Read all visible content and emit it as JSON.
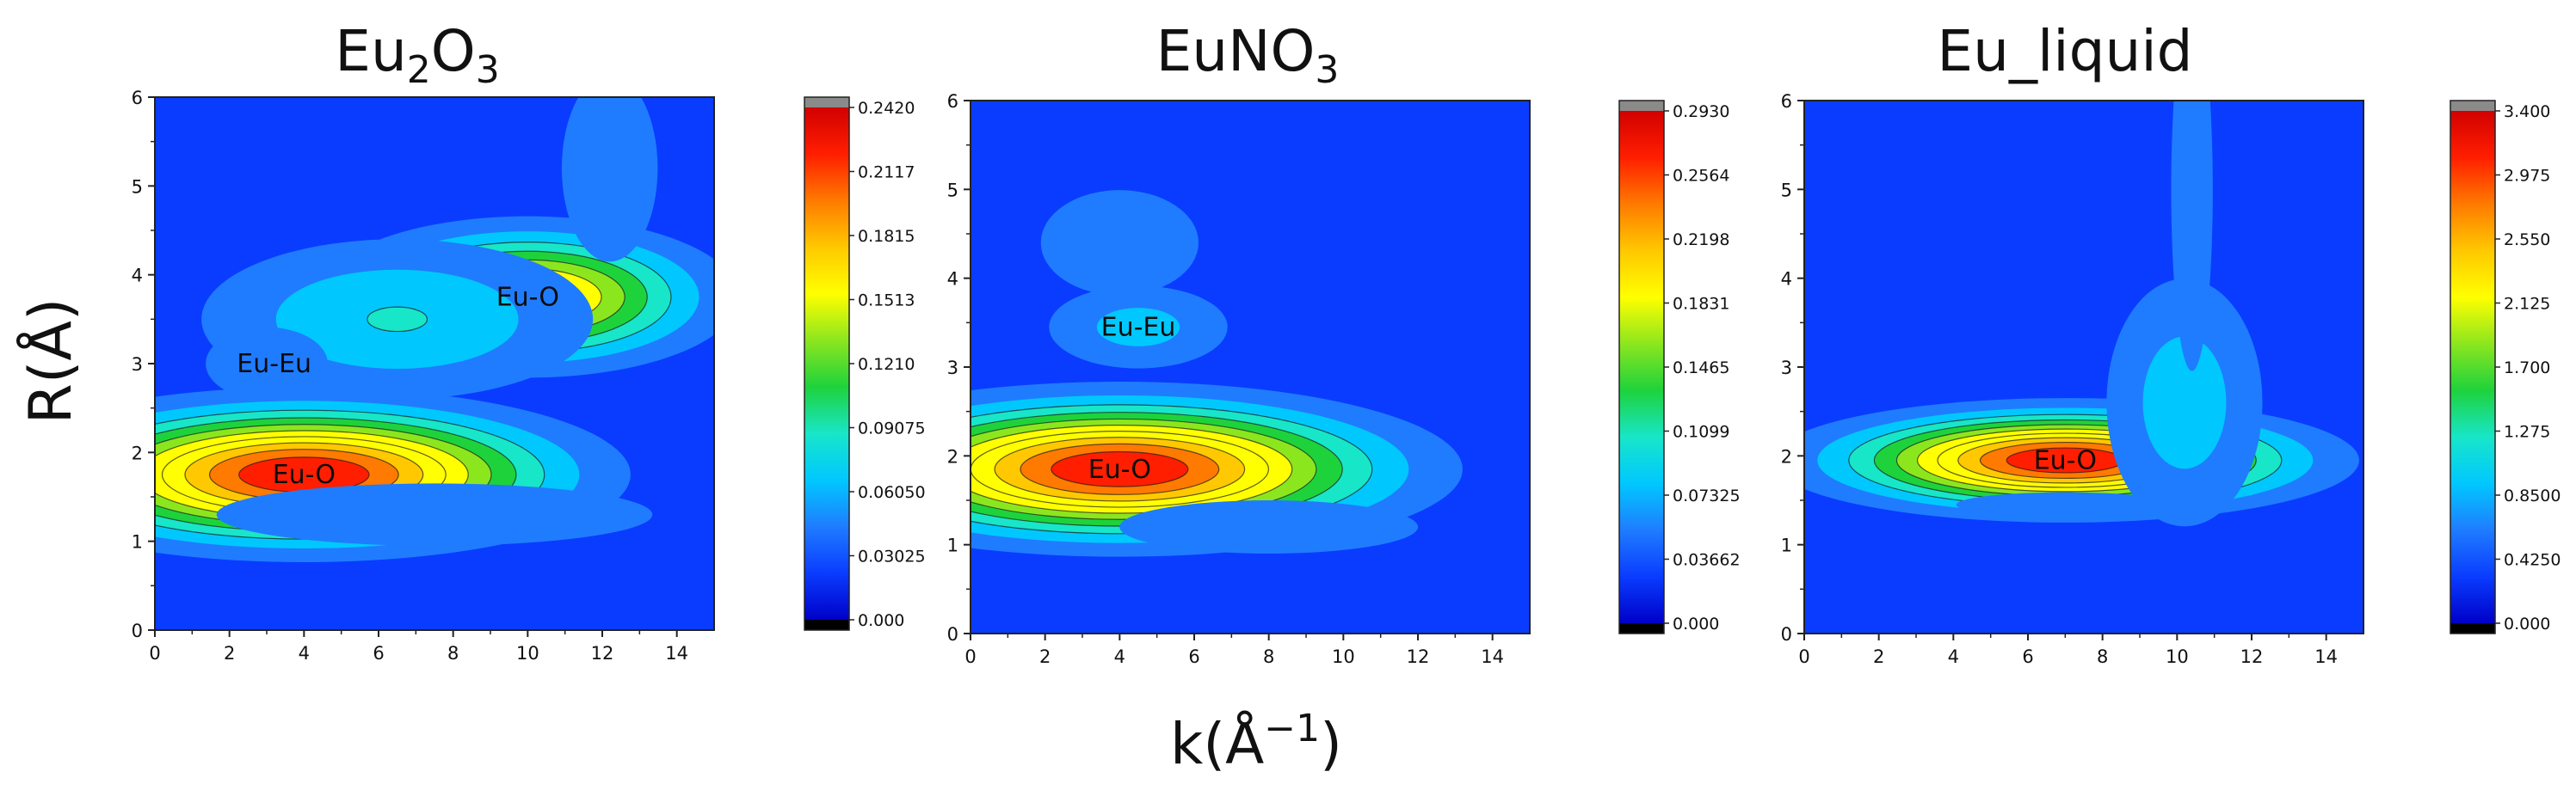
{
  "figure": {
    "y_axis_title": "R(Å)",
    "x_axis_title_main": "k(Å",
    "x_axis_title_sup": "−1",
    "x_axis_title_end": ")"
  },
  "colormap": [
    "#000000",
    "#0000c8",
    "#0a3cff",
    "#1f7cff",
    "#00c8ff",
    "#18e6c8",
    "#1ed23c",
    "#8ce61e",
    "#ffff00",
    "#ffc800",
    "#ff7a00",
    "#ff1e00",
    "#d20000"
  ],
  "chart_data": [
    {
      "type": "heatmap",
      "title_main": "Eu",
      "title_sub1": "2",
      "title_mid": "O",
      "title_sub2": "3",
      "xlim": [
        0,
        15
      ],
      "ylim": [
        0,
        6
      ],
      "x_ticks": [
        "0",
        "2",
        "4",
        "6",
        "8",
        "10",
        "12",
        "14"
      ],
      "y_ticks": [
        "0",
        "1",
        "2",
        "3",
        "4",
        "5",
        "6"
      ],
      "colorbar_ticks": [
        "0.000",
        "0.03025",
        "0.06050",
        "0.09075",
        "0.1210",
        "0.1513",
        "0.1815",
        "0.2117",
        "0.2420"
      ],
      "colorbar_max": 0.242,
      "peaks": [
        {
          "label": "Eu-O",
          "k": 4.0,
          "R": 1.75,
          "intensity": 0.242
        },
        {
          "label": "Eu-O",
          "k": 10.0,
          "R": 3.75,
          "intensity": 0.17
        },
        {
          "label": "Eu-Eu",
          "k": 3.2,
          "R": 3.0,
          "intensity": 0.05
        }
      ]
    },
    {
      "type": "heatmap",
      "title_main": "EuNO",
      "title_sub1": "3",
      "xlim": [
        0,
        15
      ],
      "ylim": [
        0,
        6
      ],
      "x_ticks": [
        "0",
        "2",
        "4",
        "6",
        "8",
        "10",
        "12",
        "14"
      ],
      "y_ticks": [
        "0",
        "1",
        "2",
        "3",
        "4",
        "5",
        "6"
      ],
      "colorbar_ticks": [
        "0.000",
        "0.03662",
        "0.07325",
        "0.1099",
        "0.1465",
        "0.1831",
        "0.2198",
        "0.2564",
        "0.2930"
      ],
      "colorbar_max": 0.293,
      "peaks": [
        {
          "label": "Eu-O",
          "k": 4.0,
          "R": 1.85,
          "intensity": 0.293
        },
        {
          "label": "Eu-Eu",
          "k": 4.5,
          "R": 3.45,
          "intensity": 0.06
        }
      ]
    },
    {
      "type": "heatmap",
      "title_main": "Eu_liquid",
      "xlim": [
        0,
        15
      ],
      "ylim": [
        0,
        6
      ],
      "x_ticks": [
        "0",
        "2",
        "4",
        "6",
        "8",
        "10",
        "12",
        "14"
      ],
      "y_ticks": [
        "0",
        "1",
        "2",
        "3",
        "4",
        "5",
        "6"
      ],
      "colorbar_ticks": [
        "0.000",
        "0.4250",
        "0.8500",
        "1.275",
        "1.700",
        "2.125",
        "2.550",
        "2.975",
        "3.400"
      ],
      "colorbar_max": 3.4,
      "peaks": [
        {
          "label": "Eu-O",
          "k": 7.0,
          "R": 1.95,
          "intensity": 3.4
        }
      ]
    }
  ]
}
